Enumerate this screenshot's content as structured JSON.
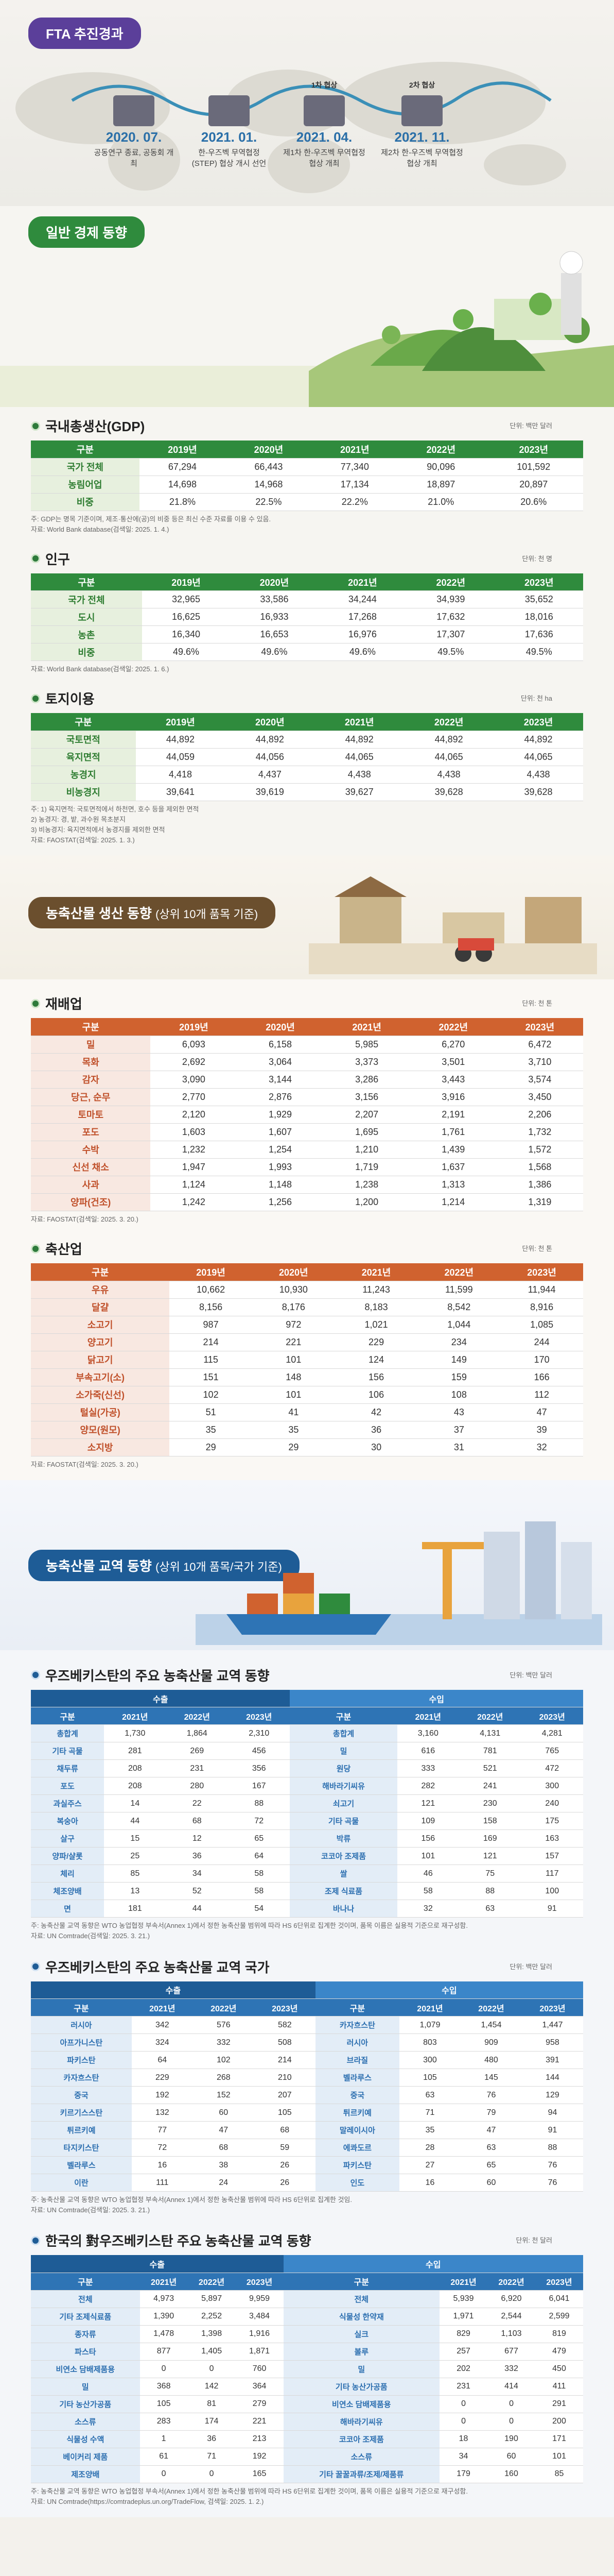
{
  "fta": {
    "banner": "FTA 추진경과",
    "events": [
      {
        "date": "2020. 07.",
        "desc": "공동연구 종료, 공동회 개최"
      },
      {
        "date": "2021. 01.",
        "desc": "한-우즈벡 무역협정(STEP) 협상 개시 선언"
      },
      {
        "date": "2021. 04.",
        "desc": "제1차 한-우즈벡 무역협정 협상 개최",
        "round": "1차 협상"
      },
      {
        "date": "2021. 11.",
        "desc": "제2차 한-우즈벡 무역협정 협상 개최",
        "round": "2차 협상"
      }
    ]
  },
  "econ": {
    "banner": "일반 경제 동향",
    "gdp": {
      "title": "국내총생산(GDP)",
      "unit": "단위: 백만 달러",
      "headers": [
        "구분",
        "2019년",
        "2020년",
        "2021년",
        "2022년",
        "2023년"
      ],
      "rows": [
        {
          "label": "국가 전체",
          "values": [
            "67,294",
            "66,443",
            "77,340",
            "90,096",
            "101,592"
          ]
        },
        {
          "label": "농림어업",
          "values": [
            "14,698",
            "14,968",
            "17,134",
            "18,897",
            "20,897"
          ]
        },
        {
          "label": "비중",
          "values": [
            "21.8%",
            "22.5%",
            "22.2%",
            "21.0%",
            "20.6%"
          ]
        }
      ],
      "notes": [
        "주: GDP는 명목 기준이며, 제조·통산에(공)의 비중 등은 최신 수준 자료를 이용 수 있음.",
        "자료: World Bank database(검색일: 2025. 1. 4.)"
      ]
    },
    "pop": {
      "title": "인구",
      "unit": "단위: 천 명",
      "headers": [
        "구분",
        "2019년",
        "2020년",
        "2021년",
        "2022년",
        "2023년"
      ],
      "rows": [
        {
          "label": "국가 전체",
          "values": [
            "32,965",
            "33,586",
            "34,244",
            "34,939",
            "35,652"
          ]
        },
        {
          "label": "도시",
          "values": [
            "16,625",
            "16,933",
            "17,268",
            "17,632",
            "18,016"
          ]
        },
        {
          "label": "농촌",
          "values": [
            "16,340",
            "16,653",
            "16,976",
            "17,307",
            "17,636"
          ]
        },
        {
          "label": "비중",
          "values": [
            "49.6%",
            "49.6%",
            "49.6%",
            "49.5%",
            "49.5%"
          ]
        }
      ],
      "notes": [
        "자료: World Bank database(검색일: 2025. 1. 6.)"
      ]
    },
    "land": {
      "title": "토지이용",
      "unit": "단위: 천 ha",
      "headers": [
        "구분",
        "2019년",
        "2020년",
        "2021년",
        "2022년",
        "2023년"
      ],
      "rows": [
        {
          "label": "국토면적",
          "values": [
            "44,892",
            "44,892",
            "44,892",
            "44,892",
            "44,892"
          ]
        },
        {
          "label": "육지면적",
          "values": [
            "44,059",
            "44,056",
            "44,065",
            "44,065",
            "44,065"
          ]
        },
        {
          "label": "농경지",
          "values": [
            "4,418",
            "4,437",
            "4,438",
            "4,438",
            "4,438"
          ]
        },
        {
          "label": "비농경지",
          "values": [
            "39,641",
            "39,619",
            "39,627",
            "39,628",
            "39,628"
          ]
        }
      ],
      "notes": [
        "주: 1) 육지면적: 국토면적에서 하천면, 호수 등을 제외한 면적",
        "2) 농경지: 경, 밭, 과수원 목초분지",
        "3) 비농경지: 육지면적에서 농경지를 제외한 면적",
        "자료: FAOSTAT(검색일: 2025. 1. 3.)"
      ]
    }
  },
  "prod": {
    "banner": "농축산물 생산 동향",
    "banner_sub": "(상위 10개 품목 기준)",
    "crop": {
      "title": "재배업",
      "unit": "단위: 천 톤",
      "headers": [
        "구분",
        "2019년",
        "2020년",
        "2021년",
        "2022년",
        "2023년"
      ],
      "rows": [
        {
          "label": "밀",
          "values": [
            "6,093",
            "6,158",
            "5,985",
            "6,270",
            "6,472"
          ]
        },
        {
          "label": "목화",
          "values": [
            "2,692",
            "3,064",
            "3,373",
            "3,501",
            "3,710"
          ]
        },
        {
          "label": "감자",
          "values": [
            "3,090",
            "3,144",
            "3,286",
            "3,443",
            "3,574"
          ]
        },
        {
          "label": "당근, 순무",
          "values": [
            "2,770",
            "2,876",
            "3,156",
            "3,916",
            "3,450"
          ]
        },
        {
          "label": "토마토",
          "values": [
            "2,120",
            "1,929",
            "2,207",
            "2,191",
            "2,206"
          ]
        },
        {
          "label": "포도",
          "values": [
            "1,603",
            "1,607",
            "1,695",
            "1,761",
            "1,732"
          ]
        },
        {
          "label": "수박",
          "values": [
            "1,232",
            "1,254",
            "1,210",
            "1,439",
            "1,572"
          ]
        },
        {
          "label": "신선 채소",
          "values": [
            "1,947",
            "1,993",
            "1,719",
            "1,637",
            "1,568"
          ]
        },
        {
          "label": "사과",
          "values": [
            "1,124",
            "1,148",
            "1,238",
            "1,313",
            "1,386"
          ]
        },
        {
          "label": "양파(건조)",
          "values": [
            "1,242",
            "1,256",
            "1,200",
            "1,214",
            "1,319"
          ]
        }
      ],
      "notes": [
        "자료: FAOSTAT(검색일: 2025. 3. 20.)"
      ]
    },
    "live": {
      "title": "축산업",
      "unit": "단위: 천 톤",
      "headers": [
        "구분",
        "2019년",
        "2020년",
        "2021년",
        "2022년",
        "2023년"
      ],
      "rows": [
        {
          "label": "우유",
          "values": [
            "10,662",
            "10,930",
            "11,243",
            "11,599",
            "11,944"
          ]
        },
        {
          "label": "달걀",
          "values": [
            "8,156",
            "8,176",
            "8,183",
            "8,542",
            "8,916"
          ]
        },
        {
          "label": "소고기",
          "values": [
            "987",
            "972",
            "1,021",
            "1,044",
            "1,085"
          ]
        },
        {
          "label": "양고기",
          "values": [
            "214",
            "221",
            "229",
            "234",
            "244"
          ]
        },
        {
          "label": "닭고기",
          "values": [
            "115",
            "101",
            "124",
            "149",
            "170"
          ]
        },
        {
          "label": "부속고기(소)",
          "values": [
            "151",
            "148",
            "156",
            "159",
            "166"
          ]
        },
        {
          "label": "소가죽(신선)",
          "values": [
            "102",
            "101",
            "106",
            "108",
            "112"
          ]
        },
        {
          "label": "털실(가공)",
          "values": [
            "51",
            "41",
            "42",
            "43",
            "47"
          ]
        },
        {
          "label": "양모(원모)",
          "values": [
            "35",
            "35",
            "36",
            "37",
            "39"
          ]
        },
        {
          "label": "소지방",
          "values": [
            "29",
            "29",
            "30",
            "31",
            "32"
          ]
        }
      ],
      "notes": [
        "자료: FAOSTAT(검색일: 2025. 3. 20.)"
      ]
    }
  },
  "trade": {
    "banner": "농축산물 교역 동향",
    "banner_sub": "(상위 10개 품목/국가 기준)",
    "t1": {
      "title": "우즈베키스탄의 주요 농축산물 교역 동향",
      "unit": "단위: 백만 달러",
      "exp": "수출",
      "imp": "수입",
      "headers": [
        "구분",
        "2021년",
        "2022년",
        "2023년",
        "구분",
        "2021년",
        "2022년",
        "2023년"
      ],
      "rows": [
        [
          "총합계",
          "1,730",
          "1,864",
          "2,310",
          "총합계",
          "3,160",
          "4,131",
          "4,281"
        ],
        [
          "기타 곡물",
          "281",
          "269",
          "456",
          "밀",
          "616",
          "781",
          "765"
        ],
        [
          "채두류",
          "208",
          "231",
          "356",
          "원당",
          "333",
          "521",
          "472"
        ],
        [
          "포도",
          "208",
          "280",
          "167",
          "해바라기씨유",
          "282",
          "241",
          "300"
        ],
        [
          "과실주스",
          "14",
          "22",
          "88",
          "쇠고기",
          "121",
          "230",
          "240"
        ],
        [
          "복숭아",
          "44",
          "68",
          "72",
          "기타 곡물",
          "109",
          "158",
          "175"
        ],
        [
          "살구",
          "15",
          "12",
          "65",
          "박류",
          "156",
          "169",
          "163"
        ],
        [
          "양파/샬롯",
          "25",
          "36",
          "64",
          "코코아 조제품",
          "101",
          "121",
          "157"
        ],
        [
          "체리",
          "85",
          "34",
          "58",
          "쌀",
          "46",
          "75",
          "117"
        ],
        [
          "체조양배",
          "13",
          "52",
          "58",
          "조제 식료품",
          "58",
          "88",
          "100"
        ],
        [
          "면",
          "181",
          "44",
          "54",
          "바나나",
          "32",
          "63",
          "91"
        ]
      ],
      "notes": [
        "주: 농축산물 교역 동향은 WTO 농업협정 부속서(Annex 1)에서 정한 농축산물 범위에 따라 HS 6단위로 집계한 것이며, 품목 이름은 실용적 기준으로 재구성함.",
        "자료: UN Comtrade(검색일: 2025. 3. 21.)"
      ]
    },
    "t2": {
      "title": "우즈베키스탄의 주요 농축산물 교역 국가",
      "unit": "단위: 백만 달러",
      "exp": "수출",
      "imp": "수입",
      "headers": [
        "구분",
        "2021년",
        "2022년",
        "2023년",
        "구분",
        "2021년",
        "2022년",
        "2023년"
      ],
      "rows": [
        [
          "러시아",
          "342",
          "576",
          "582",
          "카자흐스탄",
          "1,079",
          "1,454",
          "1,447"
        ],
        [
          "아프가니스탄",
          "324",
          "332",
          "508",
          "러시아",
          "803",
          "909",
          "958"
        ],
        [
          "파키스탄",
          "64",
          "102",
          "214",
          "브라질",
          "300",
          "480",
          "391"
        ],
        [
          "카자흐스탄",
          "229",
          "268",
          "210",
          "벨라루스",
          "105",
          "145",
          "144"
        ],
        [
          "중국",
          "192",
          "152",
          "207",
          "중국",
          "63",
          "76",
          "129"
        ],
        [
          "키르기스스탄",
          "132",
          "60",
          "105",
          "튀르키예",
          "71",
          "79",
          "94"
        ],
        [
          "튀르키예",
          "77",
          "47",
          "68",
          "말레이시아",
          "35",
          "47",
          "91"
        ],
        [
          "타지키스탄",
          "72",
          "68",
          "59",
          "에콰도르",
          "28",
          "63",
          "88"
        ],
        [
          "벨라루스",
          "16",
          "38",
          "26",
          "파키스탄",
          "27",
          "65",
          "76"
        ],
        [
          "이란",
          "111",
          "24",
          "26",
          "인도",
          "16",
          "60",
          "76"
        ]
      ],
      "notes": [
        "주: 농축산물 교역 동향은 WTO 농업협정 부속서(Annex 1)에서 정한 농축산물 범위에 따라 HS 6단위로 집계한 것임.",
        "자료: UN Comtrade(검색일: 2025. 3. 21.)"
      ]
    },
    "t3": {
      "title": "한국의 對우즈베키스탄 주요 농축산물 교역 동향",
      "unit": "단위: 천 달러",
      "exp": "수출",
      "imp": "수입",
      "headers": [
        "구분",
        "2021년",
        "2022년",
        "2023년",
        "구분",
        "2021년",
        "2022년",
        "2023년"
      ],
      "rows": [
        [
          "전체",
          "4,973",
          "5,897",
          "9,959",
          "전체",
          "5,939",
          "6,920",
          "6,041"
        ],
        [
          "기타 조제식료품",
          "1,390",
          "2,252",
          "3,484",
          "식물성 한약재",
          "1,971",
          "2,544",
          "2,599"
        ],
        [
          "종자류",
          "1,478",
          "1,398",
          "1,916",
          "실크",
          "829",
          "1,103",
          "819"
        ],
        [
          "파스타",
          "877",
          "1,405",
          "1,871",
          "볼루",
          "257",
          "677",
          "479"
        ],
        [
          "비연소 담배제품용",
          "0",
          "0",
          "760",
          "밀",
          "202",
          "332",
          "450"
        ],
        [
          "밀",
          "368",
          "142",
          "364",
          "기타 농산가공품",
          "231",
          "414",
          "411"
        ],
        [
          "기타 농산가공품",
          "105",
          "81",
          "279",
          "비연소 담배제품용",
          "0",
          "0",
          "291"
        ],
        [
          "소스류",
          "283",
          "174",
          "221",
          "해바라기씨유",
          "0",
          "0",
          "200"
        ],
        [
          "식물성 수액",
          "1",
          "36",
          "213",
          "코코아 조제품",
          "18",
          "190",
          "171"
        ],
        [
          "베이커리 제품",
          "61",
          "71",
          "192",
          "소스류",
          "34",
          "60",
          "101"
        ],
        [
          "제조양배",
          "0",
          "0",
          "165",
          "기타 꿀꿀과류/조제/제품류",
          "179",
          "160",
          "85"
        ]
      ],
      "notes": [
        "주: 농축산물 교역 동향은 WTO 농업협정 부속서(Annex 1)에서 정한 농축산물 범위에 따라 HS 6단위로 집계한 것이며, 품목 이름은 실용적 기준으로 재구성함.",
        "자료: UN Comtrade(https://comtradeplus.un.org/TradeFlow, 검색일: 2025. 1. 2.)"
      ]
    }
  }
}
